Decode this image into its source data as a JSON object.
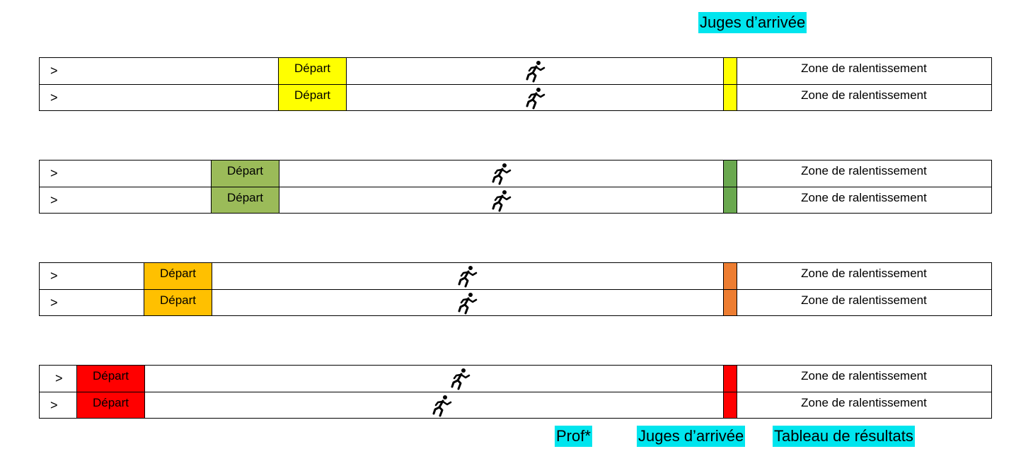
{
  "labels": {
    "top_judges": "Juges d’arrivée",
    "prof": "Prof*",
    "bottom_judges": "Juges d’arrivée",
    "results_board": "Tableau de résultats"
  },
  "icons": {
    "runner": "runner-icon"
  },
  "colors": {
    "cyan": "#00e5ee",
    "yellow": "#ffff00",
    "green": "#9bbb59",
    "green_finish": "#6aa84f",
    "orange": "#ffc000",
    "orange_finish": "#ed7d31",
    "red": "#ff0000"
  },
  "groups": [
    {
      "lanes": [
        {
          "chevron": ">",
          "depart": "Départ",
          "zone": "Zone de ralentissement"
        },
        {
          "chevron": ">",
          "depart": "Départ",
          "zone": "Zone de ralentissement"
        }
      ]
    },
    {
      "lanes": [
        {
          "chevron": ">",
          "depart": "Départ",
          "zone": "Zone de ralentissement"
        },
        {
          "chevron": ">",
          "depart": "Départ",
          "zone": "Zone de ralentissement"
        }
      ]
    },
    {
      "lanes": [
        {
          "chevron": ">",
          "depart": "Départ",
          "zone": "Zone de ralentissement"
        },
        {
          "chevron": ">",
          "depart": "Départ",
          "zone": "Zone de ralentissement"
        }
      ]
    },
    {
      "lanes": [
        {
          "chevron": ">",
          "depart": "Départ",
          "zone": "Zone de ralentissement"
        },
        {
          "chevron": ">",
          "depart": "Départ",
          "zone": "Zone de ralentissement"
        }
      ]
    }
  ]
}
